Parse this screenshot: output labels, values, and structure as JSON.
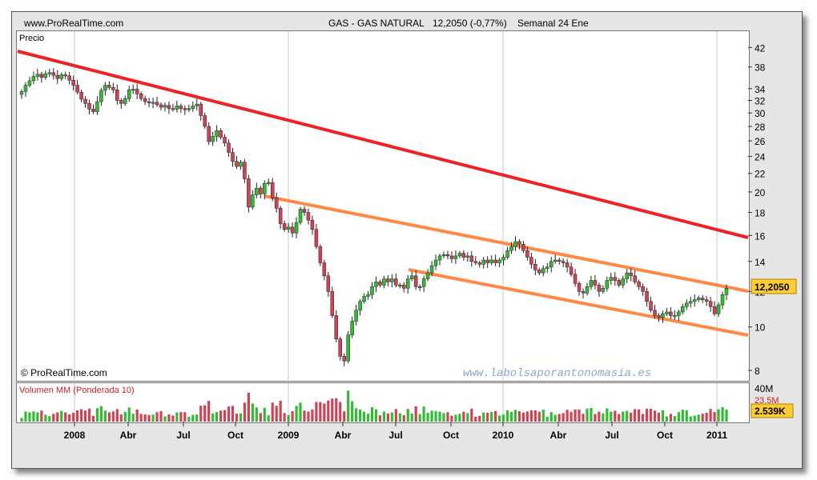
{
  "header": {
    "site": "www.ProRealTime.com",
    "instrument": "GAS - GAS NATURAL",
    "quote": "12,2050 (-0,77%)",
    "period": "Semanal  24 Ene"
  },
  "footer": {
    "copyright": "© ProRealTime.com",
    "watermark": "www.labolsaporantonomasia.es"
  },
  "colors": {
    "up": "#33bb33",
    "down": "#cc4455",
    "trend_red": "#ee2222",
    "channel_orange": "#ff8844",
    "price_tag": "#ffcc33"
  },
  "chart_data": [
    {
      "type": "candlestick",
      "title": "Precio",
      "frequency": "weekly",
      "x_tick_labels": [
        "2008",
        "Abr",
        "Jul",
        "Oct",
        "2009",
        "Abr",
        "Jul",
        "Oct",
        "2010",
        "Abr",
        "Jul",
        "Oct",
        "2011"
      ],
      "y_ticks": [
        8,
        10,
        12,
        14,
        16,
        18,
        20,
        22,
        24,
        26,
        28,
        30,
        32,
        34,
        38,
        42
      ],
      "y_scale": "log",
      "ylim": [
        7.6,
        44
      ],
      "current_price_label": "12,2050",
      "closes": [
        33.5,
        34.6,
        35.4,
        36.2,
        36.6,
        36.0,
        36.7,
        36.9,
        36.4,
        35.8,
        36.5,
        36.3,
        35.5,
        34.6,
        33.4,
        32.2,
        31.5,
        30.6,
        30.2,
        31.8,
        33.7,
        34.6,
        34.2,
        33.8,
        32.0,
        31.5,
        32.3,
        33.8,
        33.9,
        33.1,
        32.3,
        31.8,
        31.6,
        31.7,
        31.3,
        30.9,
        31.2,
        30.7,
        30.6,
        31.1,
        30.7,
        30.5,
        30.7,
        31.1,
        31.4,
        29.6,
        28.0,
        25.9,
        26.6,
        27.4,
        26.5,
        25.7,
        24.5,
        23.4,
        22.8,
        23.3,
        21.4,
        18.5,
        19.7,
        20.4,
        19.8,
        20.9,
        21.0,
        19.4,
        18.4,
        17.0,
        16.5,
        16.7,
        16.2,
        17.1,
        18.3,
        18.0,
        17.3,
        16.5,
        15.1,
        13.9,
        13.0,
        12.0,
        10.6,
        9.4,
        8.6,
        8.4,
        9.6,
        10.3,
        10.9,
        11.4,
        11.7,
        11.8,
        12.3,
        12.6,
        12.4,
        12.8,
        12.6,
        12.8,
        12.4,
        12.4,
        12.2,
        12.8,
        13.0,
        12.3,
        12.3,
        12.8,
        13.2,
        13.7,
        14.1,
        14.4,
        14.5,
        14.4,
        14.2,
        14.4,
        14.6,
        14.3,
        14.4,
        14.0,
        13.9,
        13.8,
        14.1,
        13.9,
        14.1,
        13.9,
        14.1,
        14.3,
        14.8,
        15.1,
        15.5,
        15.3,
        14.8,
        14.3,
        13.8,
        13.4,
        13.2,
        13.5,
        13.6,
        14.0,
        14.1,
        14.0,
        13.9,
        13.6,
        13.1,
        12.5,
        12.0,
        11.9,
        12.3,
        12.7,
        12.4,
        12.0,
        12.2,
        12.7,
        12.9,
        12.7,
        12.4,
        12.8,
        13.2,
        13.0,
        12.6,
        12.3,
        12.0,
        11.4,
        10.9,
        10.6,
        10.5,
        10.7,
        10.8,
        10.6,
        10.6,
        10.8,
        11.1,
        11.3,
        11.4,
        11.5,
        11.6,
        11.5,
        11.4,
        11.1,
        10.7,
        11.2,
        11.8,
        12.2
      ]
    },
    {
      "type": "bar",
      "title": "Volumen MM (Ponderada 10)",
      "y_ticks": [
        "40M",
        "23.5M"
      ],
      "current_value_label": "2.539K"
    }
  ]
}
